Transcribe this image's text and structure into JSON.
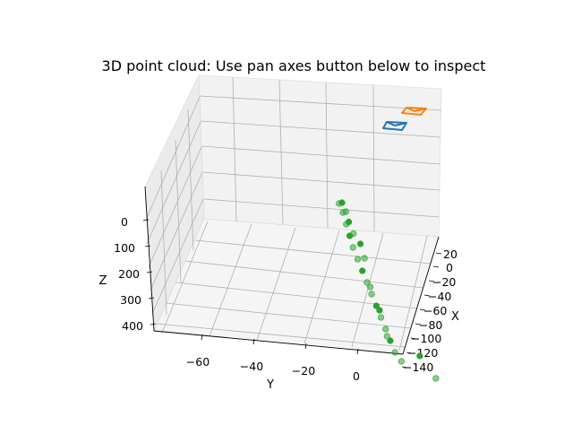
{
  "chart_data": {
    "type": "scatter",
    "title": "3D point cloud: Use pan axes button below to inspect",
    "xlabel": "X",
    "ylabel": "Y",
    "zlabel": "Z",
    "x_ticks": [
      "20",
      "0",
      "−20",
      "−40",
      "−60",
      "−80",
      "−100",
      "−120",
      "−140"
    ],
    "y_ticks": [
      "−60",
      "−40",
      "−20",
      "0"
    ],
    "z_ticks": [
      "0",
      "100",
      "200",
      "300",
      "400"
    ],
    "grid": true,
    "series": [
      {
        "color": "#2ca02c",
        "points": [
          {
            "x": 0,
            "y": 0,
            "z": 0
          },
          {
            "x": -2,
            "y": -3,
            "z": 30
          },
          {
            "x": -6,
            "y": -6,
            "z": 60
          },
          {
            "x": -10,
            "y": -9,
            "z": 90
          },
          {
            "x": -14,
            "y": -12,
            "z": 120
          },
          {
            "x": -18,
            "y": -16,
            "z": 150
          },
          {
            "x": -22,
            "y": -20,
            "z": 180
          },
          {
            "x": -26,
            "y": -24,
            "z": 210
          },
          {
            "x": -30,
            "y": -28,
            "z": 240
          },
          {
            "x": -34,
            "y": -32,
            "z": 270
          },
          {
            "x": -38,
            "y": -36,
            "z": 300
          },
          {
            "x": -42,
            "y": -40,
            "z": 330
          },
          {
            "x": -46,
            "y": -44,
            "z": 360
          },
          {
            "x": -50,
            "y": -48,
            "z": 390
          },
          {
            "x": -4,
            "y": -2,
            "z": 20
          },
          {
            "x": -8,
            "y": -4,
            "z": 45
          },
          {
            "x": -12,
            "y": -8,
            "z": 75
          },
          {
            "x": 2,
            "y": -1,
            "z": 10
          },
          {
            "x": -16,
            "y": -13,
            "z": 100
          },
          {
            "x": -20,
            "y": -18,
            "z": 140
          },
          {
            "x": -28,
            "y": -26,
            "z": 220
          },
          {
            "x": -36,
            "y": -34,
            "z": 280
          },
          {
            "x": -44,
            "y": -42,
            "z": 350
          },
          {
            "x": -54,
            "y": -52,
            "z": 410
          },
          {
            "x": -60,
            "y": -55,
            "z": 370
          },
          {
            "x": -70,
            "y": -65,
            "z": 420
          }
        ]
      }
    ],
    "cameras": [
      {
        "color": "#1f77b4"
      },
      {
        "color": "#ff7f0e"
      }
    ]
  }
}
